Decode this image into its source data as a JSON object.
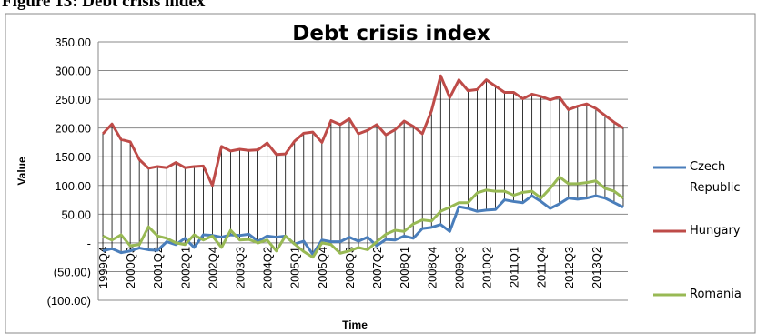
{
  "figure_caption": "Figure 13: Debt crisis index",
  "chart_data": {
    "type": "line",
    "title": "Debt crisis index",
    "x_label": "Time",
    "y_label": "Value",
    "categories": [
      "1999Q4",
      null,
      null,
      "2000Q3",
      null,
      null,
      "2001Q2",
      null,
      null,
      "2002Q1",
      null,
      null,
      "2002Q4",
      null,
      null,
      "2003Q3",
      null,
      null,
      "2004Q2",
      null,
      null,
      "2005Q1",
      null,
      null,
      "2005Q4",
      null,
      null,
      "2006Q3",
      null,
      null,
      "2007Q2",
      null,
      null,
      "2008Q1",
      null,
      null,
      "2008Q4",
      null,
      null,
      "2009Q3",
      null,
      null,
      "2010Q2",
      null,
      null,
      "2011Q1",
      null,
      null,
      "2011Q4",
      null,
      null,
      "2012Q3",
      null,
      null,
      "2013Q2",
      null,
      null,
      null
    ],
    "series": [
      {
        "name": "Czech Republic",
        "color": "#4a7ebb",
        "values": [
          -14,
          -10,
          -17,
          -14,
          -9,
          -12,
          -13,
          2,
          -3,
          8,
          -8,
          14,
          13,
          10,
          14,
          13,
          15,
          3,
          12,
          10,
          12,
          -2,
          3,
          -20,
          5,
          2,
          2,
          10,
          3,
          10,
          -5,
          6,
          5,
          12,
          8,
          25,
          27,
          32,
          20,
          63,
          60,
          55,
          57,
          58,
          75,
          72,
          70,
          82,
          72,
          60,
          68,
          78,
          76,
          78,
          82,
          78,
          70,
          62
        ]
      },
      {
        "name": "Hungary",
        "color": "#be4b48",
        "values": [
          190,
          207,
          180,
          176,
          145,
          130,
          133,
          131,
          140,
          131,
          133,
          134,
          100,
          168,
          160,
          163,
          161,
          162,
          174,
          154,
          155,
          177,
          191,
          193,
          175,
          213,
          206,
          216,
          190,
          196,
          206,
          188,
          197,
          212,
          203,
          190,
          230,
          291,
          253,
          284,
          265,
          267,
          284,
          273,
          262,
          262,
          251,
          259,
          255,
          249,
          254,
          232,
          238,
          242,
          234,
          222,
          210,
          200
        ]
      },
      {
        "name": "Romania",
        "color": "#98b954",
        "values": [
          12,
          5,
          14,
          -5,
          -3,
          28,
          12,
          8,
          0,
          -3,
          14,
          5,
          12,
          -8,
          22,
          5,
          6,
          0,
          5,
          -14,
          12,
          -2,
          -15,
          -25,
          0,
          -3,
          -18,
          -14,
          -8,
          -12,
          2,
          15,
          22,
          20,
          33,
          40,
          38,
          55,
          62,
          70,
          70,
          87,
          92,
          90,
          90,
          83,
          88,
          90,
          78,
          95,
          115,
          103,
          103,
          105,
          108,
          95,
          90,
          78
        ]
      }
    ],
    "ylim": [
      -100,
      350
    ],
    "yticks": [
      {
        "value": -100,
        "label": "(100.00)"
      },
      {
        "value": -50,
        "label": "(50.00)"
      },
      {
        "value": 0,
        "label": "-"
      },
      {
        "value": 50,
        "label": "50.00"
      },
      {
        "value": 100,
        "label": "100.00"
      },
      {
        "value": 150,
        "label": "150.00"
      },
      {
        "value": 200,
        "label": "200.00"
      },
      {
        "value": 250,
        "label": "250.00"
      },
      {
        "value": 300,
        "label": "300.00"
      },
      {
        "value": 350,
        "label": "350.00"
      }
    ],
    "grid": true,
    "high_low_lines": true,
    "legend": "right"
  }
}
